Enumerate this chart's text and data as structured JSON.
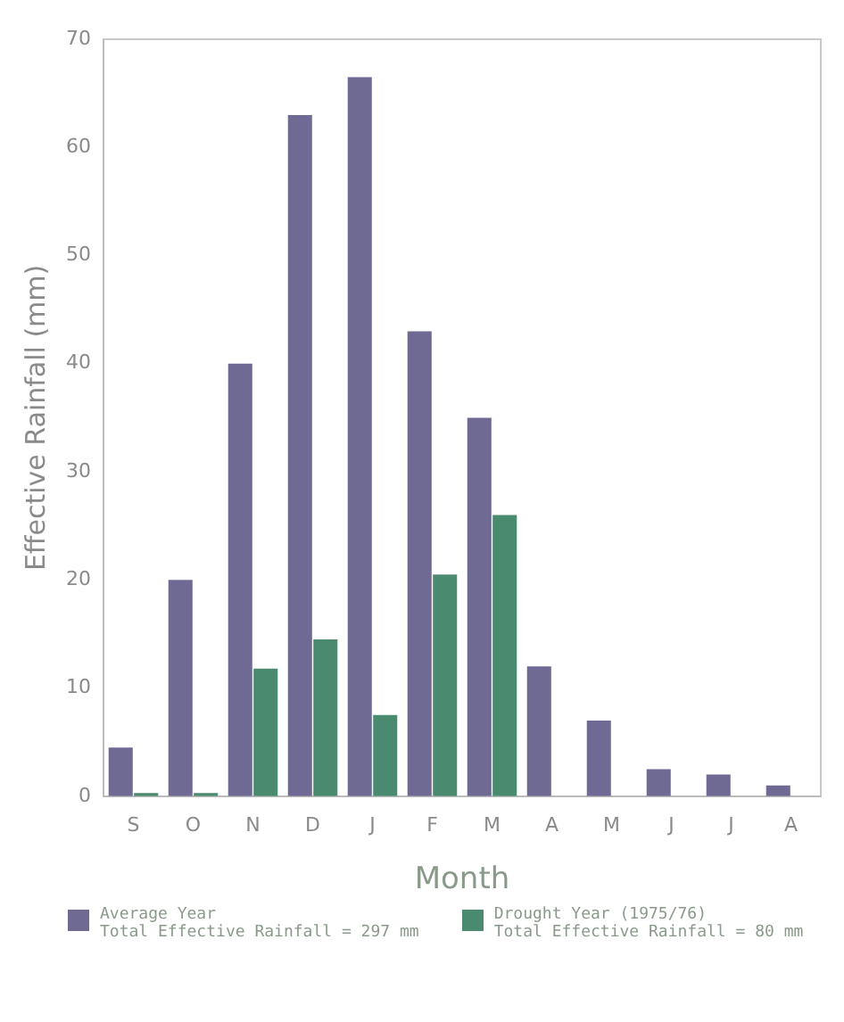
{
  "chart_data": {
    "type": "bar",
    "xlabel": "Month",
    "ylabel": "Effective Rainfall (mm)",
    "categories": [
      "S",
      "O",
      "N",
      "D",
      "J",
      "F",
      "M",
      "A",
      "M",
      "J",
      "J",
      "A"
    ],
    "series": [
      {
        "name": "Average Year",
        "color": "#6e6a94",
        "values": [
          4.5,
          20,
          40,
          63,
          66.5,
          43,
          35,
          12,
          7,
          2.5,
          2,
          1
        ]
      },
      {
        "name": "Drought Year (1975/76)",
        "color": "#4a8a6e",
        "values": [
          0.3,
          0.3,
          11.8,
          14.5,
          7.5,
          20.5,
          26,
          0,
          0,
          0,
          0,
          0
        ]
      }
    ],
    "annotations": [
      "Total Effective Rainfall = 297 mm",
      "Total Effective Rainfall = 80 mm"
    ],
    "ylim": [
      0,
      70
    ],
    "yticks": [
      0,
      10,
      20,
      30,
      40,
      50,
      60,
      70
    ],
    "grid": false,
    "legend": "bottom"
  }
}
